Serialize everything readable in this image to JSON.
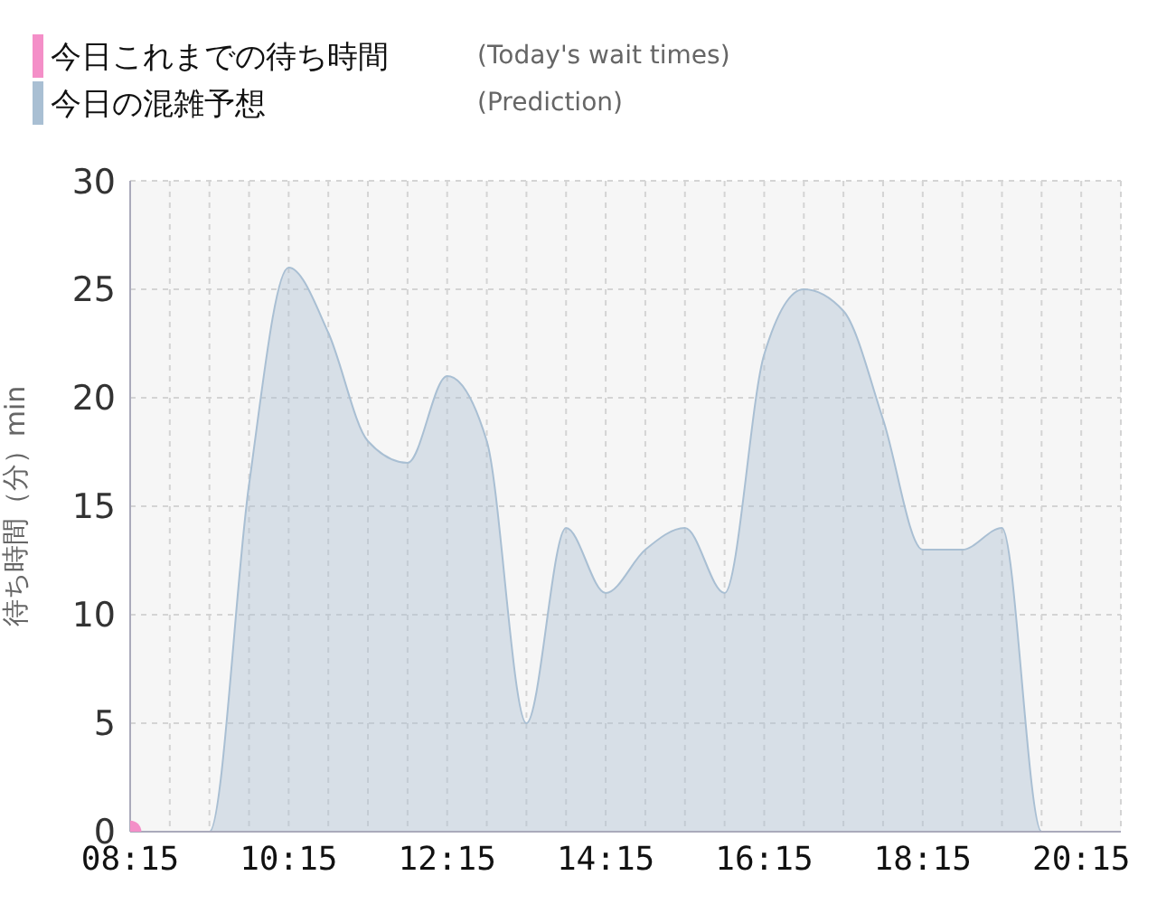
{
  "chart_data": {
    "type": "area",
    "ylabel": "待ち時間（分）min",
    "annotations": [
      "(Today's wait times)",
      "(Prediction)"
    ],
    "xlim": [
      8.25,
      20.75
    ],
    "xticks": [
      {
        "value": 8.25,
        "label": "08:15"
      },
      {
        "value": 8.75,
        "label": null
      },
      {
        "value": 9.25,
        "label": null
      },
      {
        "value": 9.75,
        "label": null
      },
      {
        "value": 10.25,
        "label": "10:15"
      },
      {
        "value": 10.75,
        "label": null
      },
      {
        "value": 11.25,
        "label": null
      },
      {
        "value": 11.75,
        "label": null
      },
      {
        "value": 12.25,
        "label": "12:15"
      },
      {
        "value": 12.75,
        "label": null
      },
      {
        "value": 13.25,
        "label": null
      },
      {
        "value": 13.75,
        "label": null
      },
      {
        "value": 14.25,
        "label": "14:15"
      },
      {
        "value": 14.75,
        "label": null
      },
      {
        "value": 15.25,
        "label": null
      },
      {
        "value": 15.75,
        "label": null
      },
      {
        "value": 16.25,
        "label": "16:15"
      },
      {
        "value": 16.75,
        "label": null
      },
      {
        "value": 17.25,
        "label": null
      },
      {
        "value": 17.75,
        "label": null
      },
      {
        "value": 18.25,
        "label": "18:15"
      },
      {
        "value": 18.75,
        "label": null
      },
      {
        "value": 19.25,
        "label": null
      },
      {
        "value": 19.75,
        "label": null
      },
      {
        "value": 20.25,
        "label": "20:15"
      },
      {
        "value": 20.75,
        "label": null
      }
    ],
    "ylim": [
      0,
      30
    ],
    "yticks": [
      0,
      5,
      10,
      15,
      20,
      25,
      30
    ],
    "grid": true,
    "legend": "top left",
    "series": [
      {
        "name": "今日これまでの待ち時間",
        "type": "scatter",
        "color": "#f48fc8",
        "marker": "circle",
        "x": [
          8.25
        ],
        "values": [
          0
        ]
      },
      {
        "name": "今日の混雑予想",
        "color": "#a9bfd3",
        "x": [
          8.25,
          8.75,
          9.25,
          9.75,
          10.25,
          10.75,
          11.25,
          11.75,
          12.25,
          12.75,
          13.25,
          13.75,
          14.25,
          14.75,
          15.25,
          15.75,
          16.25,
          16.75,
          17.25,
          17.75,
          18.25,
          18.75,
          19.25,
          19.75,
          20.25,
          20.75
        ],
        "values": [
          0,
          0,
          0,
          16,
          26,
          23,
          18,
          17,
          21,
          18,
          5,
          14,
          11,
          13,
          14,
          11,
          22,
          25,
          24,
          19,
          13,
          13,
          14,
          0,
          0,
          0
        ]
      }
    ]
  }
}
